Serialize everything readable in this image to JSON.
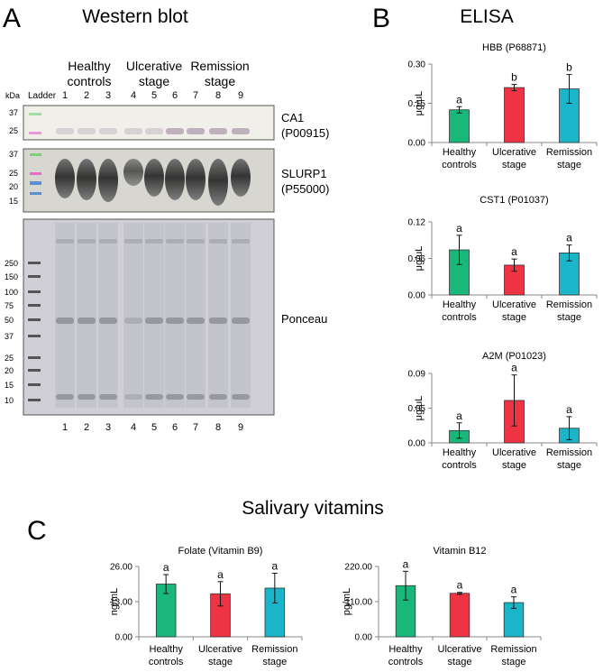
{
  "panels": {
    "A": {
      "letter": "A",
      "title": "Western blot",
      "groups": [
        "Healthy",
        "controls",
        "Ulcerative",
        "stage",
        "Remission",
        "stage"
      ],
      "kda_label": "kDa",
      "ladder_label": "Ladder",
      "lanes": [
        "1",
        "2",
        "3",
        "4",
        "5",
        "6",
        "7",
        "8",
        "9"
      ],
      "blot1_markers": [
        "37",
        "25"
      ],
      "blot2_markers": [
        "37",
        "25",
        "20",
        "15"
      ],
      "blot3_markers": [
        "250",
        "150",
        "100",
        "75",
        "50",
        "37",
        "25",
        "20",
        "15",
        "10"
      ],
      "blot_labels": {
        "ca1_name": "CA1",
        "ca1_id": "(P00915)",
        "slurp_name": "SLURP1",
        "slurp_id": "(P55000)",
        "ponceau": "Ponceau"
      }
    },
    "B": {
      "letter": "B",
      "title": "ELISA"
    },
    "C": {
      "letter": "C",
      "title": "Salivary vitamins"
    }
  },
  "colors": {
    "healthy": "#19b87a",
    "ulcerative": "#ee3344",
    "remission": "#1ab5c8"
  },
  "chart_data": [
    {
      "type": "bar",
      "title": "HBB (P68871)",
      "ylabel": "μg/uL",
      "categories": [
        [
          "Healthy",
          "controls"
        ],
        [
          "Ulcerative",
          "stage"
        ],
        [
          "Remission",
          "stage"
        ]
      ],
      "values": [
        0.125,
        0.21,
        0.205
      ],
      "errors": [
        0.012,
        0.012,
        0.055
      ],
      "letters": [
        "a",
        "b",
        "b"
      ],
      "ylim": [
        0,
        0.3
      ],
      "yticks": [
        "0.00",
        "0.15",
        "0.30"
      ]
    },
    {
      "type": "bar",
      "title": "CST1 (P01037)",
      "ylabel": "μg/uL",
      "categories": [
        [
          "Healthy",
          "controls"
        ],
        [
          "Ulcerative",
          "stage"
        ],
        [
          "Remission",
          "stage"
        ]
      ],
      "values": [
        0.074,
        0.049,
        0.069
      ],
      "errors": [
        0.024,
        0.01,
        0.013
      ],
      "letters": [
        "a",
        "a",
        "a"
      ],
      "ylim": [
        0,
        0.12
      ],
      "yticks": [
        "0.00",
        "0.06",
        "0.12"
      ]
    },
    {
      "type": "bar",
      "title": "A2M (P01023)",
      "ylabel": "μg/uL",
      "categories": [
        [
          "Healthy",
          "controls"
        ],
        [
          "Ulcerative",
          "stage"
        ],
        [
          "Remission",
          "stage"
        ]
      ],
      "values": [
        0.016,
        0.055,
        0.019
      ],
      "errors": [
        0.01,
        0.033,
        0.015
      ],
      "letters": [
        "a",
        "a",
        "a"
      ],
      "ylim": [
        0,
        0.09
      ],
      "yticks": [
        "0.00",
        "0.05",
        "0.09"
      ]
    },
    {
      "type": "bar",
      "title": "Folate (Vitamin B9)",
      "ylabel": "ng/mL",
      "categories": [
        [
          "Healthy",
          "controls"
        ],
        [
          "Ulcerative",
          "stage"
        ],
        [
          "Remission",
          "stage"
        ]
      ],
      "values": [
        19.5,
        15.9,
        18.0
      ],
      "errors": [
        3.5,
        4.5,
        5.5
      ],
      "letters": [
        "a",
        "a",
        "a"
      ],
      "ylim": [
        0,
        26
      ],
      "yticks": [
        "0.00",
        "13.00",
        "26.00"
      ]
    },
    {
      "type": "bar",
      "title": "Vitamin B12",
      "ylabel": "pg/mL",
      "categories": [
        [
          "Healthy",
          "controls"
        ],
        [
          "Ulcerative",
          "stage"
        ],
        [
          "Remission",
          "stage"
        ]
      ],
      "values": [
        160,
        136,
        107
      ],
      "errors": [
        45,
        3,
        18
      ],
      "letters": [
        "a",
        "a",
        "a"
      ],
      "ylim": [
        0,
        220
      ],
      "yticks": [
        "0.00",
        "110.00",
        "220.00"
      ]
    }
  ]
}
